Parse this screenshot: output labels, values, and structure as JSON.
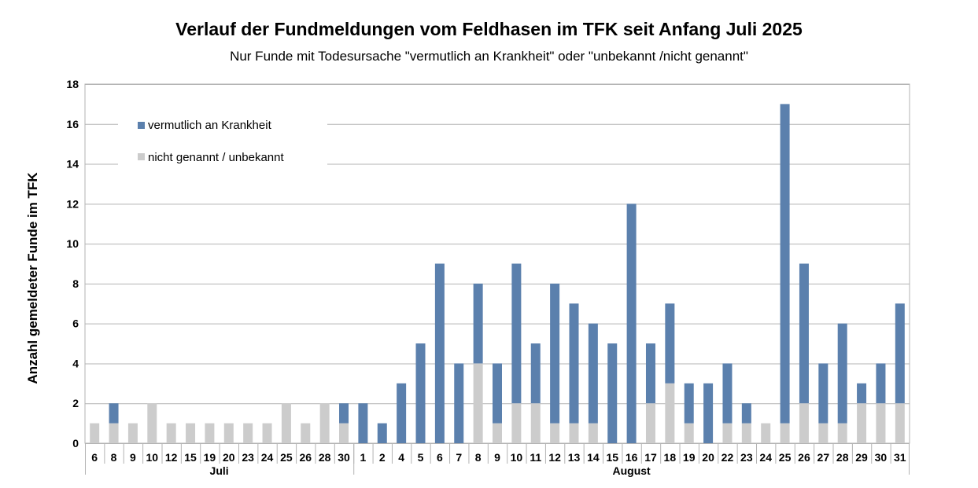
{
  "chart_data": {
    "type": "bar",
    "stacked": true,
    "title": "Verlauf der Fundmeldungen vom Feldhasen im TFK seit Anfang Juli 2025",
    "subtitle": "Nur Funde mit Todesursache \"vermutlich an Krankheit\" oder \"unbekannt /nicht genannt\"",
    "ylabel": "Anzahl gemeldeter Funde im TFK",
    "ylim": [
      0,
      18
    ],
    "yticks": [
      0,
      2,
      4,
      6,
      8,
      10,
      12,
      14,
      16,
      18
    ],
    "grid": true,
    "legend_position": "top-left",
    "categories": [
      "6",
      "8",
      "9",
      "10",
      "12",
      "15",
      "19",
      "20",
      "23",
      "24",
      "25",
      "26",
      "28",
      "30",
      "1",
      "2",
      "4",
      "5",
      "6",
      "7",
      "8",
      "9",
      "10",
      "11",
      "12",
      "13",
      "14",
      "15",
      "16",
      "17",
      "18",
      "19",
      "20",
      "22",
      "23",
      "24",
      "25",
      "26",
      "27",
      "28",
      "29",
      "30",
      "31"
    ],
    "groups": [
      {
        "label": "Juli",
        "count": 14
      },
      {
        "label": "August",
        "count": 29
      }
    ],
    "series": [
      {
        "name": "nicht genannt / unbekannt",
        "color": "#cccccc",
        "values": [
          1,
          1,
          1,
          2,
          1,
          1,
          1,
          1,
          1,
          1,
          2,
          1,
          2,
          1,
          0,
          0,
          0,
          0,
          0,
          0,
          4,
          1,
          2,
          2,
          1,
          1,
          1,
          0,
          0,
          2,
          3,
          1,
          0,
          1,
          1,
          1,
          1,
          2,
          1,
          1,
          2,
          2,
          2
        ]
      },
      {
        "name": "vermutlich an Krankheit",
        "color": "#5b80ad",
        "values": [
          0,
          1,
          0,
          0,
          0,
          0,
          0,
          0,
          0,
          0,
          0,
          0,
          0,
          1,
          2,
          1,
          3,
          5,
          9,
          4,
          4,
          3,
          7,
          3,
          7,
          6,
          5,
          5,
          12,
          3,
          4,
          2,
          3,
          3,
          1,
          0,
          16,
          7,
          3,
          5,
          1,
          2,
          5
        ]
      }
    ]
  }
}
